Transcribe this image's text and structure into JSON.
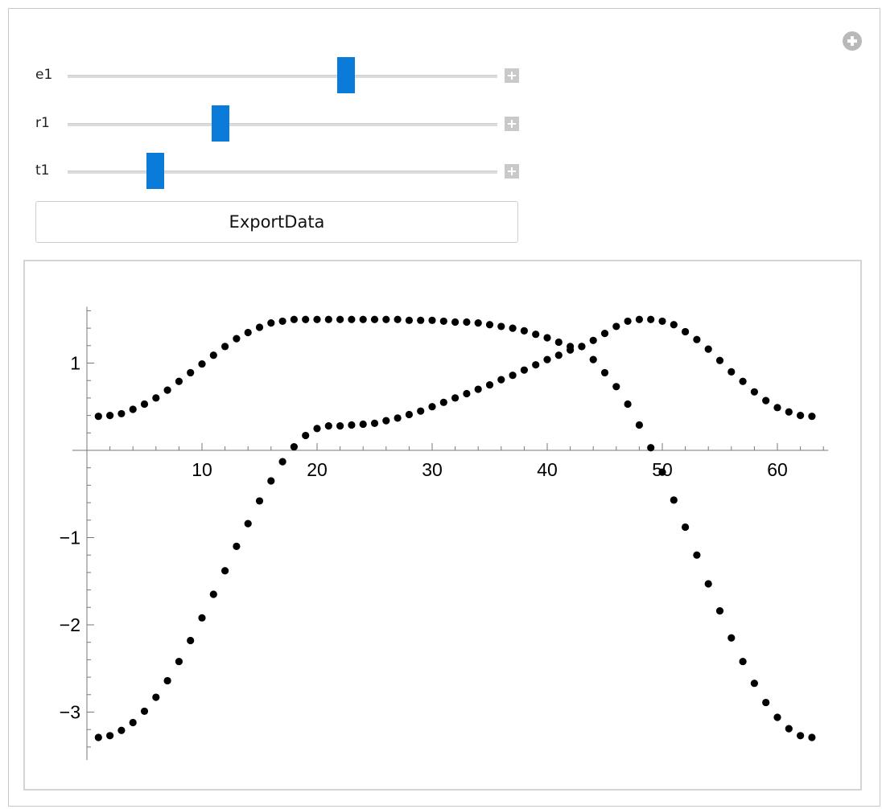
{
  "controls": {
    "sliders": [
      {
        "label": "e1",
        "value": 0.648
      },
      {
        "label": "r1",
        "value": 0.355
      },
      {
        "label": "t1",
        "value": 0.204
      }
    ],
    "export_button": "ExportData",
    "thumb_color": "#0a7bd8"
  },
  "chart_data": {
    "type": "scatter",
    "title": "",
    "xlabel": "",
    "ylabel": "",
    "xlim": [
      0,
      64
    ],
    "ylim": [
      -3.55,
      1.7
    ],
    "x_ticks": [
      10,
      20,
      30,
      40,
      50,
      60
    ],
    "y_ticks": [
      1,
      -1,
      -2,
      -3
    ],
    "x_tick_labels": [
      "10",
      "20",
      "30",
      "40",
      "50",
      "60"
    ],
    "y_tick_labels": [
      "1",
      "−1",
      "−2",
      "−3"
    ],
    "series": [
      {
        "x": [
          1,
          2,
          3,
          4,
          5,
          6,
          7,
          8,
          9,
          10,
          11,
          12,
          13,
          14,
          15,
          16,
          17,
          18,
          19,
          20,
          21,
          22,
          23,
          24,
          25,
          26,
          27,
          28,
          29,
          30,
          31,
          32,
          33,
          34,
          35,
          36,
          37,
          38,
          39,
          40,
          41,
          42,
          43,
          44,
          45,
          46,
          47,
          48,
          49,
          50,
          51,
          52,
          53,
          54,
          55,
          56,
          57,
          58,
          59,
          60,
          61,
          62,
          63
        ],
        "values": [
          0.39,
          0.4,
          0.42,
          0.47,
          0.53,
          0.6,
          0.69,
          0.79,
          0.89,
          0.99,
          1.09,
          1.19,
          1.28,
          1.35,
          1.41,
          1.46,
          1.48,
          1.5,
          1.5,
          1.5,
          1.5,
          1.5,
          1.5,
          1.5,
          1.5,
          1.5,
          1.5,
          1.49,
          1.49,
          1.49,
          1.48,
          1.47,
          1.47,
          1.46,
          1.44,
          1.42,
          1.4,
          1.37,
          1.33,
          1.29,
          1.24,
          1.19,
          1.19,
          1.26,
          1.34,
          1.42,
          1.48,
          1.5,
          1.5,
          1.48,
          1.44,
          1.36,
          1.27,
          1.16,
          1.03,
          0.9,
          0.79,
          0.67,
          0.57,
          0.49,
          0.44,
          0.4,
          0.39
        ]
      },
      {
        "x": [
          1,
          2,
          3,
          4,
          5,
          6,
          7,
          8,
          9,
          10,
          11,
          12,
          13,
          14,
          15,
          16,
          17,
          18,
          19,
          20,
          21,
          22,
          23,
          24,
          25,
          26,
          27,
          28,
          29,
          30,
          31,
          32,
          33,
          34,
          35,
          36,
          37,
          38,
          39,
          40,
          41,
          42,
          43,
          44,
          45,
          46,
          47,
          48,
          49,
          50,
          51,
          52,
          53,
          54,
          55,
          56,
          57,
          58,
          59,
          60,
          61,
          62,
          63
        ],
        "values": [
          -3.29,
          -3.27,
          -3.21,
          -3.12,
          -2.99,
          -2.83,
          -2.64,
          -2.42,
          -2.18,
          -1.92,
          -1.65,
          -1.38,
          -1.1,
          -0.84,
          -0.58,
          -0.35,
          -0.13,
          0.04,
          0.17,
          0.25,
          0.28,
          0.28,
          0.29,
          0.3,
          0.31,
          0.34,
          0.37,
          0.41,
          0.45,
          0.5,
          0.55,
          0.6,
          0.65,
          0.7,
          0.75,
          0.81,
          0.86,
          0.92,
          0.98,
          1.04,
          1.09,
          1.15,
          1.19,
          1.04,
          0.89,
          0.73,
          0.53,
          0.29,
          0.03,
          -0.25,
          -0.57,
          -0.88,
          -1.2,
          -1.53,
          -1.84,
          -2.15,
          -2.42,
          -2.67,
          -2.89,
          -3.06,
          -3.19,
          -3.27,
          -3.29
        ]
      }
    ],
    "marker_color": "#000000",
    "grid": false,
    "legend": "none"
  }
}
